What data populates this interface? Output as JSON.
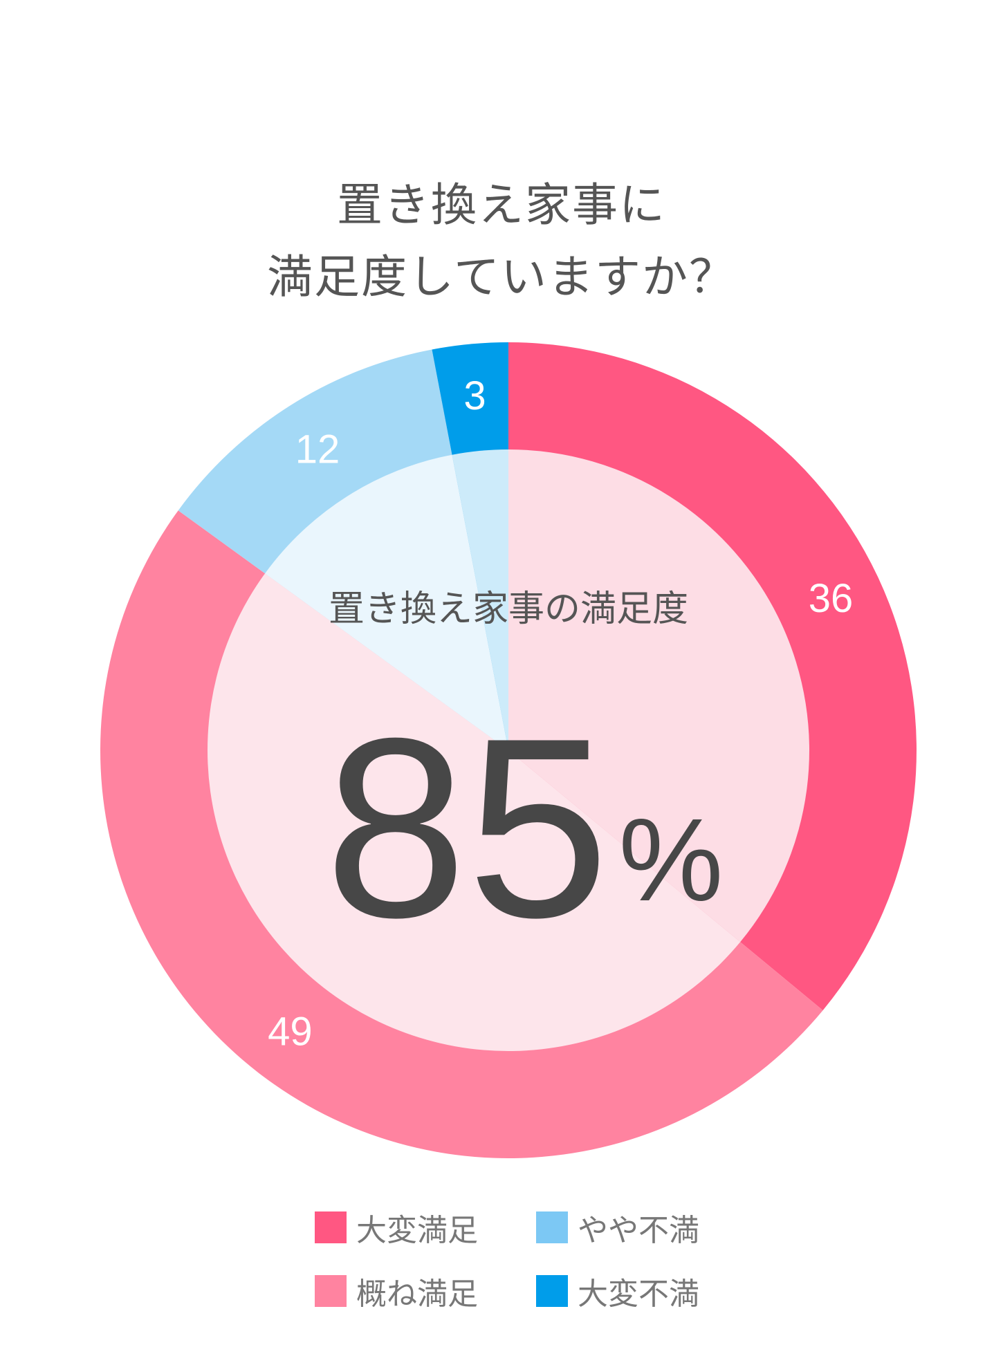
{
  "title": {
    "line1": "置き換え家事に",
    "line2": "満足度していますか？"
  },
  "center": {
    "label": "置き換え家事の満足度",
    "value": "85",
    "unit": "%"
  },
  "chart_data": {
    "type": "pie",
    "style": "donut",
    "title": "置き換え家事に満足度していますか？",
    "categories": [
      "大変満足",
      "概ね満足",
      "やや不満",
      "大変不満"
    ],
    "values": [
      36,
      49,
      12,
      3
    ],
    "labels": [
      "36",
      "49",
      "12",
      "3"
    ],
    "colors": [
      "#FF5782",
      "#FF83A0",
      "#A4D9F6",
      "#009DEA"
    ],
    "inner_colors": [
      "#FDDDE5",
      "#FDE5EB",
      "#EAF6FD",
      "#CDEBFA"
    ],
    "legend": "bottom",
    "start_angle_deg": 0,
    "direction": "clockwise"
  },
  "legend": {
    "items": [
      {
        "label": "大変満足",
        "color": "#FF5782"
      },
      {
        "label": "やや不満",
        "color": "#7CC8F4"
      },
      {
        "label": "概ね満足",
        "color": "#FF83A0"
      },
      {
        "label": "大変不満",
        "color": "#009DEA"
      }
    ]
  }
}
